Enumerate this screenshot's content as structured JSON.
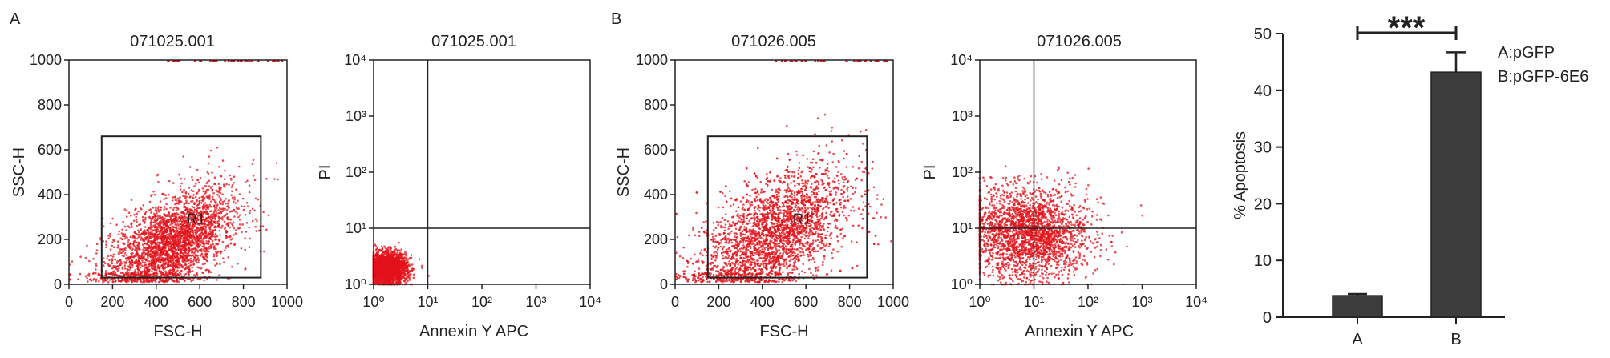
{
  "colors": {
    "dots": "#e3131b",
    "bar": "#3c3c3c",
    "axis": "#222222"
  },
  "panel_labels": [
    "A",
    "B"
  ],
  "chart_data": [
    {
      "type": "scatter",
      "title": "071025.001",
      "xlabel": "FSC-H",
      "ylabel": "SSC-H",
      "xlim": [
        0,
        1000
      ],
      "ylim": [
        0,
        1000
      ],
      "xticks": [
        "0",
        "200",
        "400",
        "600",
        "800",
        "1000"
      ],
      "yticks": [
        "0",
        "200",
        "400",
        "600",
        "800",
        "1000"
      ],
      "gate": {
        "label": "R1",
        "x": [
          150,
          880
        ],
        "y": [
          30,
          660
        ]
      },
      "population": {
        "center": [
          470,
          180
        ],
        "spread": [
          150,
          120
        ],
        "count": 3000
      }
    },
    {
      "type": "scatter",
      "title": "071025.001",
      "xlabel": "Annexin Y APC",
      "ylabel": "PI",
      "xscale": "log",
      "yscale": "log",
      "xlim": [
        1,
        10000
      ],
      "ylim": [
        1,
        10000
      ],
      "xticks": [
        "10⁰",
        "10¹",
        "10²",
        "10³",
        "10⁴"
      ],
      "yticks": [
        "10⁰",
        "10¹",
        "10²",
        "10³",
        "10⁴"
      ],
      "quadrant": {
        "x": 10,
        "y": 10
      },
      "population": {
        "center_log": [
          0.25,
          0.28
        ],
        "spread_log": [
          0.18,
          0.14
        ],
        "count": 2500
      }
    },
    {
      "type": "scatter",
      "title": "071026.005",
      "xlabel": "FSC-H",
      "ylabel": "SSC-H",
      "xlim": [
        0,
        1000
      ],
      "ylim": [
        0,
        1000
      ],
      "xticks": [
        "0",
        "200",
        "400",
        "600",
        "800",
        "1000"
      ],
      "yticks": [
        "0",
        "200",
        "400",
        "600",
        "800",
        "1000"
      ],
      "gate": {
        "label": "R1",
        "x": [
          150,
          880
        ],
        "y": [
          30,
          660
        ]
      },
      "population": {
        "center": [
          450,
          220
        ],
        "spread": [
          170,
          150
        ],
        "count": 3000
      }
    },
    {
      "type": "scatter",
      "title": "071026.005",
      "xlabel": "Annexin Y APC",
      "ylabel": "PI",
      "xscale": "log",
      "yscale": "log",
      "xlim": [
        1,
        10000
      ],
      "ylim": [
        1,
        10000
      ],
      "xticks": [
        "10⁰",
        "10¹",
        "10²",
        "10³",
        "10⁴"
      ],
      "yticks": [
        "10⁰",
        "10¹",
        "10²",
        "10³",
        "10⁴"
      ],
      "quadrant": {
        "x": 10,
        "y": 10
      },
      "population": {
        "center_log": [
          0.9,
          0.9
        ],
        "spread_log": [
          0.55,
          0.4
        ],
        "count": 2500
      }
    },
    {
      "type": "bar",
      "categories": [
        "A",
        "B"
      ],
      "values": [
        3.8,
        43.2
      ],
      "errors": [
        0.3,
        3.5
      ],
      "ylabel": "% Apoptosis",
      "ylim": [
        0,
        50
      ],
      "yticks": [
        "0",
        "10",
        "20",
        "30",
        "40",
        "50"
      ],
      "significance": "***",
      "legend": [
        "A:pGFP",
        "B:pGFP-6E6"
      ]
    }
  ]
}
